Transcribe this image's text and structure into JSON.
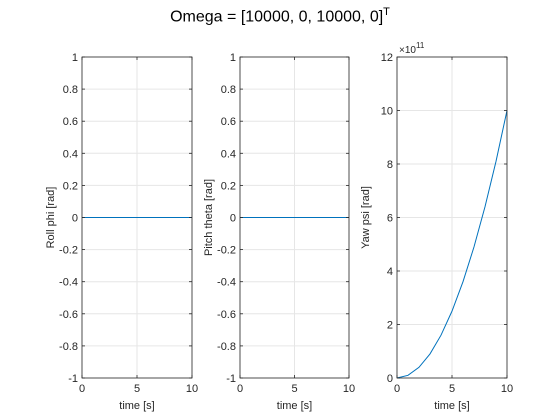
{
  "title": {
    "main": "Omega = [10000, 0, 10000, 0]",
    "superscript": "T"
  },
  "colors": {
    "line": "#0072bd",
    "grid": "#e6e6e6",
    "axis": "#262626",
    "background": "#ffffff"
  },
  "chart_data": [
    {
      "type": "line",
      "title": "",
      "xlabel": "time [s]",
      "ylabel": "Roll phi [rad]",
      "xlim": [
        0,
        10
      ],
      "ylim": [
        -1,
        1
      ],
      "xticks": [
        "0",
        "5",
        "10"
      ],
      "yticks": [
        "-1",
        "-0.8",
        "-0.6",
        "-0.4",
        "-0.2",
        "0",
        "0.2",
        "0.4",
        "0.6",
        "0.8",
        "1"
      ],
      "exponent": "",
      "grid": true,
      "series": [
        {
          "x": [
            0,
            10
          ],
          "y": [
            0,
            0
          ]
        }
      ]
    },
    {
      "type": "line",
      "title": "",
      "xlabel": "time [s]",
      "ylabel": "Pitch theta [rad]",
      "xlim": [
        0,
        10
      ],
      "ylim": [
        -1,
        1
      ],
      "xticks": [
        "0",
        "5",
        "10"
      ],
      "yticks": [
        "-1",
        "-0.8",
        "-0.6",
        "-0.4",
        "-0.2",
        "0",
        "0.2",
        "0.4",
        "0.6",
        "0.8",
        "1"
      ],
      "exponent": "",
      "grid": true,
      "series": [
        {
          "x": [
            0,
            10
          ],
          "y": [
            0,
            0
          ]
        }
      ]
    },
    {
      "type": "line",
      "title": "",
      "xlabel": "time [s]",
      "ylabel": "Yaw psi [rad]",
      "xlim": [
        0,
        10
      ],
      "ylim": [
        0,
        12
      ],
      "xticks": [
        "0",
        "5",
        "10"
      ],
      "yticks": [
        "0",
        "2",
        "4",
        "6",
        "8",
        "10",
        "12"
      ],
      "exponent": "×10",
      "exponent_power": "11",
      "grid": true,
      "series": [
        {
          "x": [
            0,
            1,
            2,
            3,
            4,
            5,
            6,
            7,
            8,
            9,
            10
          ],
          "y": [
            0,
            0.1,
            0.4,
            0.9,
            1.6,
            2.5,
            3.6,
            4.9,
            6.4,
            8.1,
            10.0
          ]
        }
      ]
    }
  ]
}
